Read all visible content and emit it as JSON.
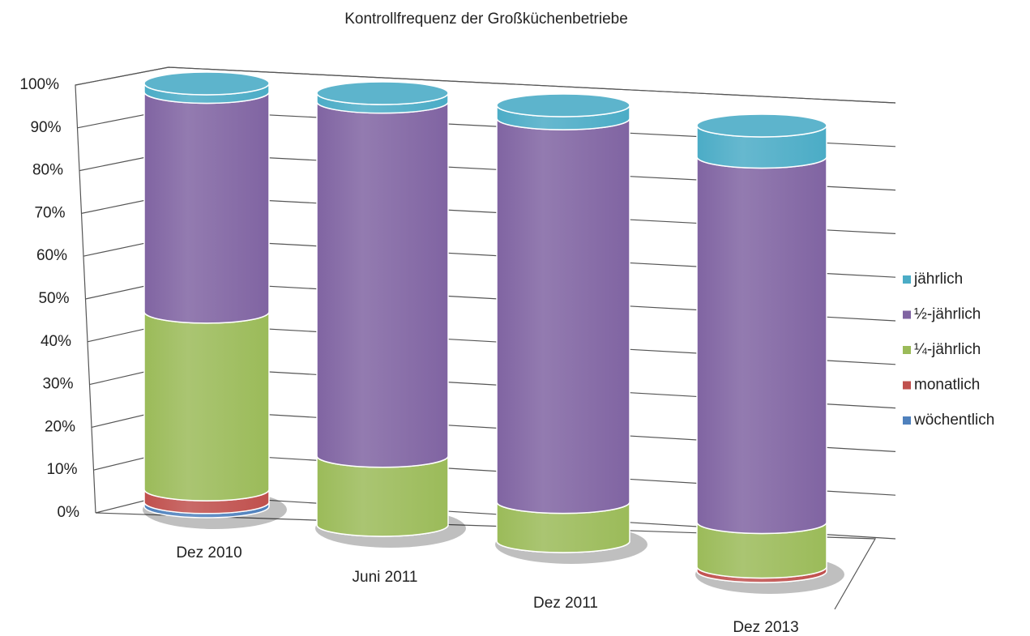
{
  "chart_data": {
    "type": "bar3d_stacked",
    "title": "Kontrollfrequenz der Großküchenbetriebe",
    "categories": [
      "Dez 2010",
      "Juni 2011",
      "Dez 2011",
      "Dez 2013"
    ],
    "series": [
      {
        "name": "wöchentlich",
        "color": "#4f81bd",
        "values": [
          1,
          0,
          0,
          0
        ]
      },
      {
        "name": "monatlich",
        "color": "#c0504d",
        "values": [
          3,
          0,
          0,
          1
        ]
      },
      {
        "name": "¼-jährlich",
        "color": "#9bbb59",
        "values": [
          42,
          16,
          9,
          10
        ]
      },
      {
        "name": "½-jährlich",
        "color": "#8064a2",
        "values": [
          52,
          82,
          88,
          82
        ]
      },
      {
        "name": "jährlich",
        "color": "#4bacc6",
        "values": [
          2,
          2,
          3,
          7
        ]
      }
    ],
    "ylim": [
      0,
      100
    ],
    "yticks": [
      {
        "value": 0,
        "label": "0%"
      },
      {
        "value": 10,
        "label": "10%"
      },
      {
        "value": 20,
        "label": "20%"
      },
      {
        "value": 30,
        "label": "30%"
      },
      {
        "value": 40,
        "label": "40%"
      },
      {
        "value": 50,
        "label": "50%"
      },
      {
        "value": 60,
        "label": "60%"
      },
      {
        "value": 70,
        "label": "70%"
      },
      {
        "value": 80,
        "label": "80%"
      },
      {
        "value": 90,
        "label": "90%"
      },
      {
        "value": 100,
        "label": "100%"
      }
    ],
    "grid": true
  }
}
